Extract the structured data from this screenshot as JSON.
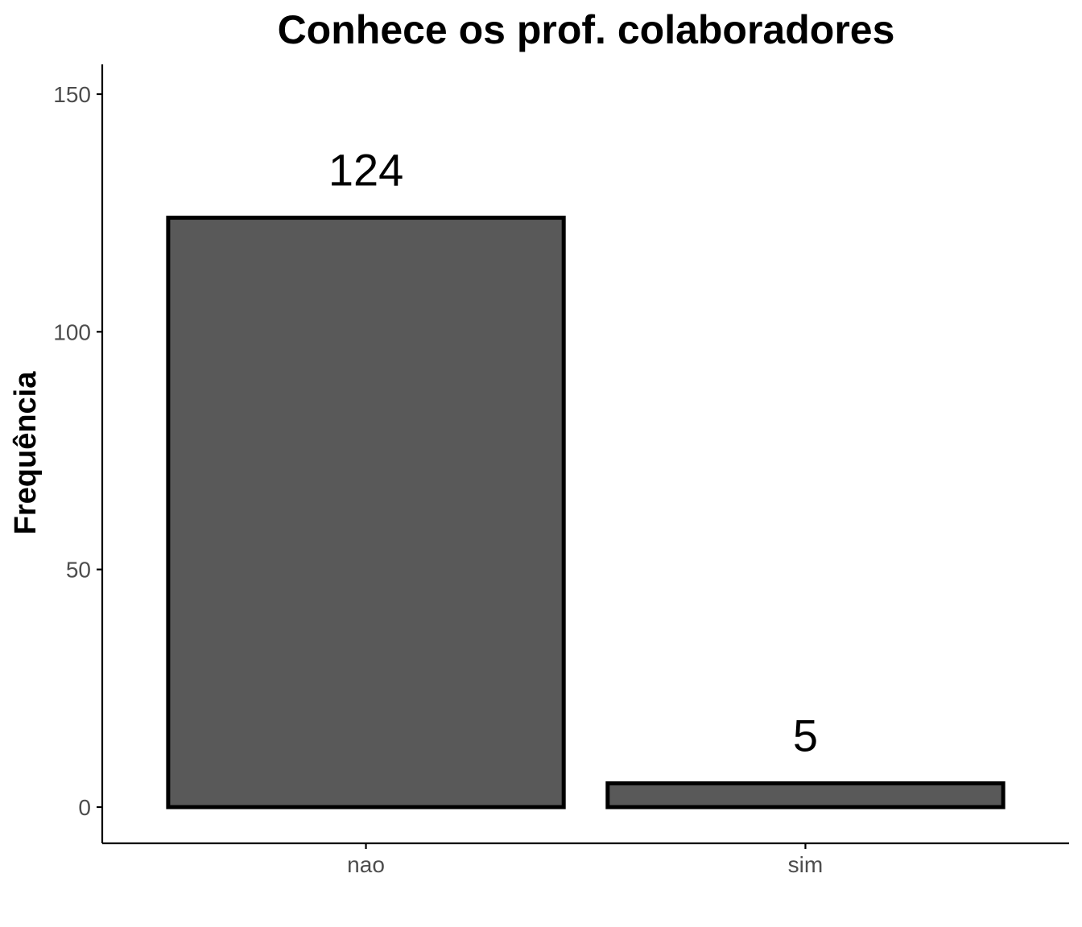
{
  "chart_data": {
    "type": "bar",
    "title": "Conhece os prof. colaboradores",
    "xlabel": "",
    "ylabel": "Frequência",
    "categories": [
      "nao",
      "sim"
    ],
    "values": [
      124,
      5
    ],
    "data_labels": [
      "124",
      "5"
    ],
    "ylim": [
      -7.5,
      157
    ],
    "yticks": [
      0,
      50,
      100,
      150
    ],
    "ytick_labels": [
      "0",
      "50",
      "100",
      "150"
    ],
    "grid": false,
    "legend": "none",
    "colors": {
      "bar_fill": "#595959",
      "bar_outline": "#000000",
      "tick_label": "#4d4d4d"
    }
  }
}
